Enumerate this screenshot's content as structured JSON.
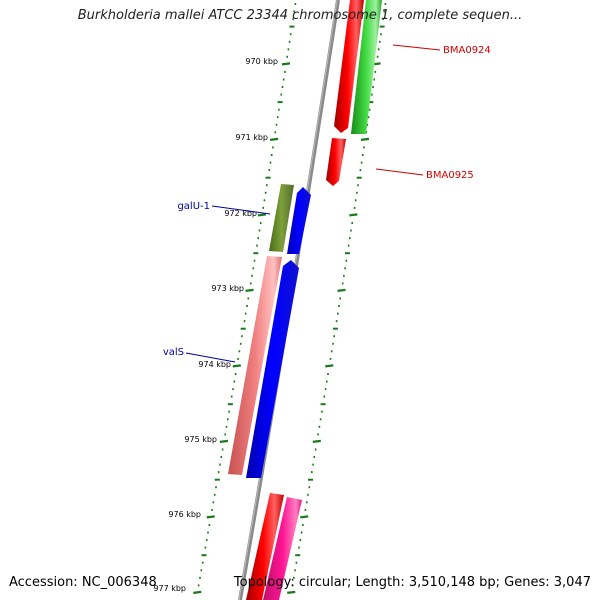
{
  "header": {
    "title": "Burkholderia mallei ATCC 23344 chromosome 1, complete sequen..."
  },
  "footer": {
    "accession": "Accession: NC_006348",
    "summary": "Topology: circular; Length: 3,510,148 bp; Genes: 3,047"
  },
  "ruler": {
    "tick_labels": [
      "970 kbp",
      "971 kbp",
      "972 kbp",
      "973 kbp",
      "974 kbp",
      "975 kbp",
      "976 kbp",
      "977 kbp"
    ]
  },
  "genes": [
    {
      "label": "BMA0924",
      "label_color": "#d40000"
    },
    {
      "label": "BMA0925",
      "label_color": "#d40000"
    },
    {
      "label": "galU-1",
      "label_color": "#0000a0"
    },
    {
      "label": "valS",
      "label_color": "#0000a0"
    }
  ],
  "colors": {
    "backbone": "#8a8a8a",
    "ticks": "#1a7a1a",
    "red": "#ff0000",
    "green": "#33cc33",
    "olive": "#6b8e23",
    "blue": "#0000ff",
    "salmon": "#f08080",
    "magenta": "#ff1493"
  }
}
